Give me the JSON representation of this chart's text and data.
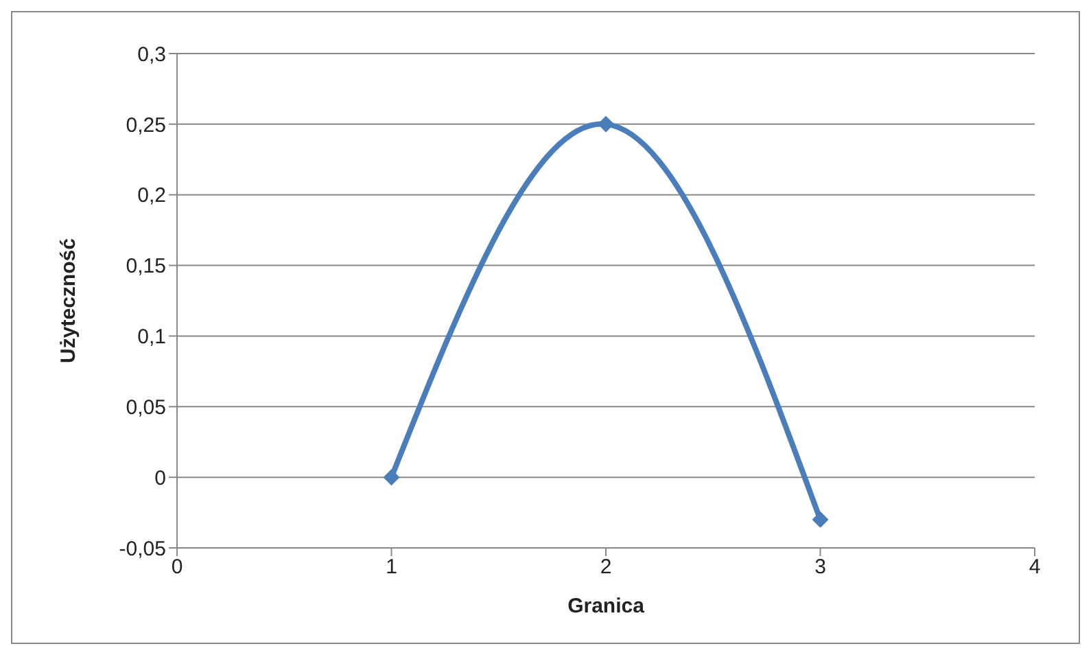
{
  "chart_data": {
    "type": "line",
    "xlabel": "Granica",
    "ylabel": "Użyteczność",
    "x": [
      1,
      2,
      3
    ],
    "series": [
      {
        "color": "#4a7ebb",
        "values": [
          0,
          0.25,
          -0.03
        ]
      }
    ],
    "xlim": [
      0,
      4
    ],
    "xticks": [
      0,
      1,
      2,
      3,
      4
    ],
    "ylim": [
      -0.05,
      0.3
    ],
    "yticks": [
      {
        "value": -0.05,
        "label": "-0,05"
      },
      {
        "value": 0,
        "label": "0"
      },
      {
        "value": 0.05,
        "label": "0,05"
      },
      {
        "value": 0.1,
        "label": "0,1"
      },
      {
        "value": 0.15,
        "label": "0,15"
      },
      {
        "value": 0.2,
        "label": "0,2"
      },
      {
        "value": 0.25,
        "label": "0,25"
      },
      {
        "value": 0.3,
        "label": "0,3"
      }
    ],
    "grid": "y",
    "marker": "diamond",
    "line_style": "solid",
    "legend": false
  }
}
